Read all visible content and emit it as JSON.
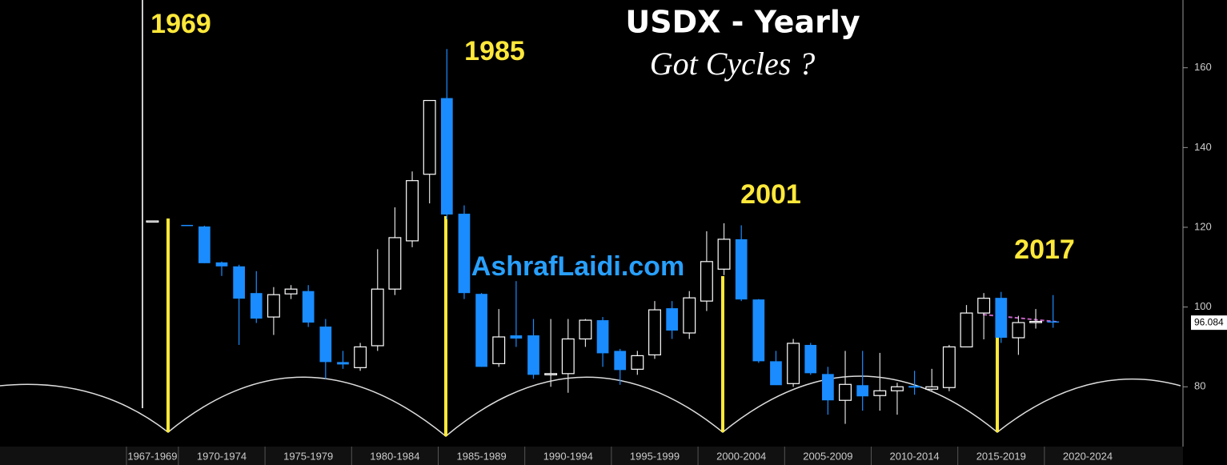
{
  "chart_data": {
    "type": "candlestick",
    "title": "USDX - Yearly",
    "subtitle": "Got Cycles ?",
    "annotations": [
      "1969",
      "1985",
      "2001",
      "2017"
    ],
    "watermark": "AshrafLaidi.com",
    "x": [
      1968,
      1970,
      1971,
      1972,
      1973,
      1974,
      1975,
      1976,
      1977,
      1978,
      1979,
      1980,
      1981,
      1982,
      1983,
      1984,
      1985,
      1986,
      1987,
      1988,
      1989,
      1990,
      1991,
      1992,
      1993,
      1994,
      1995,
      1996,
      1997,
      1998,
      1999,
      2000,
      2001,
      2002,
      2003,
      2004,
      2005,
      2006,
      2007,
      2008,
      2009,
      2010,
      2011,
      2012,
      2013,
      2014,
      2015,
      2016,
      2017,
      2018,
      2019,
      2020
    ],
    "open": [
      121.6,
      120.6,
      120.2,
      111.2,
      110.2,
      103.5,
      97.5,
      103.3,
      104,
      95.1,
      86.2,
      84.8,
      90.3,
      104.5,
      116.6,
      133.3,
      152.4,
      123.4,
      103.3,
      85.8,
      92.9,
      92.9,
      83,
      83.3,
      92,
      96.7,
      89,
      84.4,
      88,
      99.7,
      93.5,
      101.5,
      109.5,
      117,
      101.9,
      86.4,
      80.8,
      90.5,
      83.2,
      76.6,
      80.4,
      77.8,
      79,
      80.2,
      79.4,
      79.8,
      90,
      98.5,
      102.3,
      92.3,
      96.1,
      96.4
    ],
    "high": [
      121.6,
      120.6,
      120.4,
      111.4,
      110.6,
      109,
      105,
      105.5,
      105.5,
      97,
      89,
      91,
      114.5,
      125,
      134,
      151.8,
      164.7,
      125.5,
      103.5,
      99.5,
      106.5,
      97,
      97,
      97,
      97,
      97.5,
      89.5,
      89,
      101.5,
      101.5,
      104,
      119,
      121,
      120.5,
      102,
      89,
      92,
      91,
      85,
      89,
      89,
      88.5,
      81,
      84,
      84.5,
      90.5,
      100.5,
      103.5,
      103.8,
      97.8,
      99.5,
      103
    ],
    "low": [
      121.6,
      120.4,
      111,
      107.8,
      90.5,
      96,
      93,
      102,
      95,
      82,
      84.5,
      84,
      89,
      103,
      115,
      126,
      122,
      102,
      85,
      85,
      90,
      82,
      80,
      78.5,
      90,
      85,
      80.5,
      83,
      87,
      92,
      92,
      99,
      108,
      101.5,
      86,
      80.5,
      80,
      83,
      73,
      70.7,
      74,
      74,
      73,
      78,
      79,
      78.9,
      91,
      91.9,
      91,
      88,
      94.6,
      94.8
    ],
    "close": [
      121.6,
      120.4,
      111,
      110.2,
      102.1,
      97.1,
      103.1,
      104.5,
      96.1,
      86.2,
      85.6,
      90,
      104.5,
      117.4,
      131.7,
      151.8,
      123.2,
      103.5,
      85,
      92.5,
      92.1,
      83,
      83.3,
      92,
      96.7,
      88.4,
      84.2,
      87.8,
      99.3,
      94.1,
      102.3,
      111.4,
      117,
      101.9,
      86.4,
      80.4,
      90.9,
      83.4,
      76.6,
      80.6,
      77.6,
      79,
      80,
      79.8,
      80,
      90,
      98.5,
      102.2,
      92.3,
      96.1,
      96.4,
      96.1
    ],
    "up_color": "#ffffff",
    "down_color": "#1a8cff",
    "last_value": 96.084,
    "xlim": [
      1959.2,
      2027.5
    ],
    "ylim": [
      65,
      177
    ],
    "yticks": [
      80,
      100,
      120,
      140,
      160
    ],
    "xticks": [
      {
        "value": 1967,
        "label": "1967-1969"
      },
      {
        "value": 1970,
        "label": "1970-1974"
      },
      {
        "value": 1975,
        "label": "1975-1979"
      },
      {
        "value": 1980,
        "label": "1980-1984"
      },
      {
        "value": 1985,
        "label": "1985-1989"
      },
      {
        "value": 1990,
        "label": "1990-1994"
      },
      {
        "value": 1995,
        "label": "1995-1999"
      },
      {
        "value": 2000,
        "label": "2000-2004"
      },
      {
        "value": 2005,
        "label": "2005-2009"
      },
      {
        "value": 2010,
        "label": "2010-2014"
      },
      {
        "value": 2015,
        "label": "2015-2019"
      },
      {
        "value": 2020,
        "label": "2020-2024"
      }
    ]
  }
}
